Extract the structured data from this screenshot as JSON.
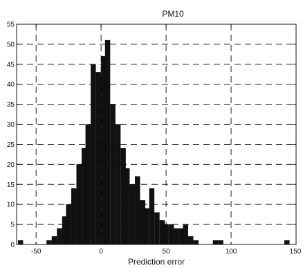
{
  "chart_data": {
    "type": "bar",
    "title": "PM10",
    "xlabel": "Prediction error",
    "ylabel": "",
    "xlim": [
      -65,
      150
    ],
    "ylim": [
      0,
      55
    ],
    "xticks": [
      -50,
      0,
      50,
      100,
      150
    ],
    "yticks": [
      0,
      5,
      10,
      15,
      20,
      25,
      30,
      35,
      40,
      45,
      50,
      55
    ],
    "grid": true,
    "legend": "none",
    "bin_width": 3.75,
    "bars_color": "#111111",
    "bins": [
      {
        "x": -62,
        "value": 1
      },
      {
        "x": -40,
        "value": 1
      },
      {
        "x": -36,
        "value": 2
      },
      {
        "x": -32,
        "value": 4
      },
      {
        "x": -28,
        "value": 7
      },
      {
        "x": -25,
        "value": 10
      },
      {
        "x": -21,
        "value": 14
      },
      {
        "x": -17,
        "value": 20
      },
      {
        "x": -13,
        "value": 24
      },
      {
        "x": -10,
        "value": 30
      },
      {
        "x": -6,
        "value": 45
      },
      {
        "x": -2,
        "value": 43
      },
      {
        "x": 2,
        "value": 47
      },
      {
        "x": 5,
        "value": 51
      },
      {
        "x": 9,
        "value": 35
      },
      {
        "x": 13,
        "value": 30
      },
      {
        "x": 17,
        "value": 24
      },
      {
        "x": 20,
        "value": 19
      },
      {
        "x": 24,
        "value": 15
      },
      {
        "x": 28,
        "value": 17
      },
      {
        "x": 32,
        "value": 11
      },
      {
        "x": 35,
        "value": 9
      },
      {
        "x": 39,
        "value": 14
      },
      {
        "x": 43,
        "value": 8
      },
      {
        "x": 47,
        "value": 6
      },
      {
        "x": 50,
        "value": 5
      },
      {
        "x": 54,
        "value": 5
      },
      {
        "x": 58,
        "value": 4
      },
      {
        "x": 62,
        "value": 4
      },
      {
        "x": 65,
        "value": 5
      },
      {
        "x": 69,
        "value": 2
      },
      {
        "x": 73,
        "value": 1
      },
      {
        "x": 88,
        "value": 1
      },
      {
        "x": 92,
        "value": 1
      },
      {
        "x": 143,
        "value": 1
      }
    ]
  }
}
